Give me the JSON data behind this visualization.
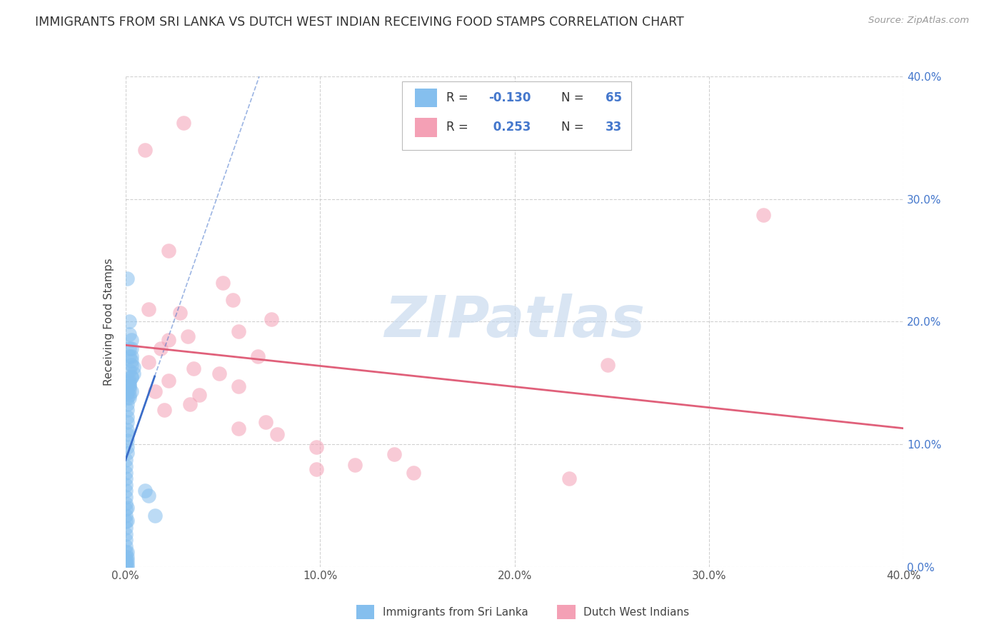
{
  "title": "IMMIGRANTS FROM SRI LANKA VS DUTCH WEST INDIAN RECEIVING FOOD STAMPS CORRELATION CHART",
  "source": "Source: ZipAtlas.com",
  "ylabel": "Receiving Food Stamps",
  "x_min": 0.0,
  "x_max": 0.4,
  "y_min": 0.0,
  "y_max": 0.4,
  "x_ticks": [
    0.0,
    0.1,
    0.2,
    0.3,
    0.4
  ],
  "y_ticks": [
    0.0,
    0.1,
    0.2,
    0.3,
    0.4
  ],
  "y_tick_labels": [
    "0.0%",
    "10.0%",
    "20.0%",
    "30.0%",
    "40.0%"
  ],
  "x_tick_labels": [
    "0.0%",
    "10.0%",
    "20.0%",
    "30.0%",
    "40.0%"
  ],
  "sri_lanka_R": -0.13,
  "sri_lanka_N": 65,
  "dutch_R": 0.253,
  "dutch_N": 33,
  "sri_lanka_color": "#85BFEE",
  "dutch_color": "#F4A0B5",
  "sri_lanka_line_color": "#3A6CC8",
  "dutch_line_color": "#E0607A",
  "watermark": "ZIPatlas",
  "watermark_color": "#C5D8EE",
  "legend_label_sri": "Immigrants from Sri Lanka",
  "legend_label_dutch": "Dutch West Indians",
  "background_color": "#FFFFFF",
  "grid_color": "#CCCCCC",
  "right_axis_color": "#4477CC",
  "title_fontsize": 12.5,
  "sri_lanka_dots": [
    [
      0.001,
      0.235
    ],
    [
      0.002,
      0.2
    ],
    [
      0.002,
      0.19
    ],
    [
      0.003,
      0.185
    ],
    [
      0.003,
      0.178
    ],
    [
      0.002,
      0.172
    ],
    [
      0.003,
      0.165
    ],
    [
      0.002,
      0.16
    ],
    [
      0.003,
      0.155
    ],
    [
      0.002,
      0.15
    ],
    [
      0.002,
      0.147
    ],
    [
      0.003,
      0.143
    ],
    [
      0.002,
      0.14
    ],
    [
      0.002,
      0.138
    ],
    [
      0.002,
      0.178
    ],
    [
      0.003,
      0.172
    ],
    [
      0.003,
      0.168
    ],
    [
      0.004,
      0.163
    ],
    [
      0.004,
      0.158
    ],
    [
      0.003,
      0.155
    ],
    [
      0.002,
      0.152
    ],
    [
      0.002,
      0.148
    ],
    [
      0.002,
      0.145
    ],
    [
      0.001,
      0.142
    ],
    [
      0.001,
      0.138
    ],
    [
      0.001,
      0.133
    ],
    [
      0.001,
      0.128
    ],
    [
      0.001,
      0.122
    ],
    [
      0.001,
      0.118
    ],
    [
      0.001,
      0.112
    ],
    [
      0.001,
      0.108
    ],
    [
      0.001,
      0.103
    ],
    [
      0.001,
      0.098
    ],
    [
      0.001,
      0.093
    ],
    [
      0.0,
      0.087
    ],
    [
      0.0,
      0.082
    ],
    [
      0.0,
      0.077
    ],
    [
      0.0,
      0.072
    ],
    [
      0.0,
      0.067
    ],
    [
      0.0,
      0.062
    ],
    [
      0.0,
      0.057
    ],
    [
      0.0,
      0.052
    ],
    [
      0.0,
      0.047
    ],
    [
      0.0,
      0.042
    ],
    [
      0.0,
      0.037
    ],
    [
      0.0,
      0.032
    ],
    [
      0.0,
      0.027
    ],
    [
      0.0,
      0.022
    ],
    [
      0.0,
      0.017
    ],
    [
      0.0,
      0.012
    ],
    [
      0.0,
      0.008
    ],
    [
      0.0,
      0.005
    ],
    [
      0.0,
      0.003
    ],
    [
      0.0,
      0.001
    ],
    [
      0.0,
      0.0
    ],
    [
      0.001,
      0.0
    ],
    [
      0.001,
      0.002
    ],
    [
      0.001,
      0.005
    ],
    [
      0.001,
      0.008
    ],
    [
      0.001,
      0.012
    ],
    [
      0.001,
      0.038
    ],
    [
      0.001,
      0.048
    ],
    [
      0.01,
      0.062
    ],
    [
      0.012,
      0.058
    ],
    [
      0.015,
      0.042
    ]
  ],
  "dutch_dots": [
    [
      0.01,
      0.34
    ],
    [
      0.03,
      0.362
    ],
    [
      0.022,
      0.258
    ],
    [
      0.05,
      0.232
    ],
    [
      0.055,
      0.218
    ],
    [
      0.012,
      0.21
    ],
    [
      0.028,
      0.207
    ],
    [
      0.075,
      0.202
    ],
    [
      0.058,
      0.192
    ],
    [
      0.032,
      0.188
    ],
    [
      0.022,
      0.185
    ],
    [
      0.018,
      0.178
    ],
    [
      0.068,
      0.172
    ],
    [
      0.012,
      0.167
    ],
    [
      0.035,
      0.162
    ],
    [
      0.048,
      0.158
    ],
    [
      0.022,
      0.152
    ],
    [
      0.058,
      0.147
    ],
    [
      0.015,
      0.143
    ],
    [
      0.038,
      0.14
    ],
    [
      0.033,
      0.133
    ],
    [
      0.02,
      0.128
    ],
    [
      0.072,
      0.118
    ],
    [
      0.058,
      0.113
    ],
    [
      0.078,
      0.108
    ],
    [
      0.098,
      0.098
    ],
    [
      0.138,
      0.092
    ],
    [
      0.118,
      0.083
    ],
    [
      0.098,
      0.08
    ],
    [
      0.148,
      0.077
    ],
    [
      0.248,
      0.165
    ],
    [
      0.328,
      0.287
    ],
    [
      0.228,
      0.072
    ]
  ]
}
